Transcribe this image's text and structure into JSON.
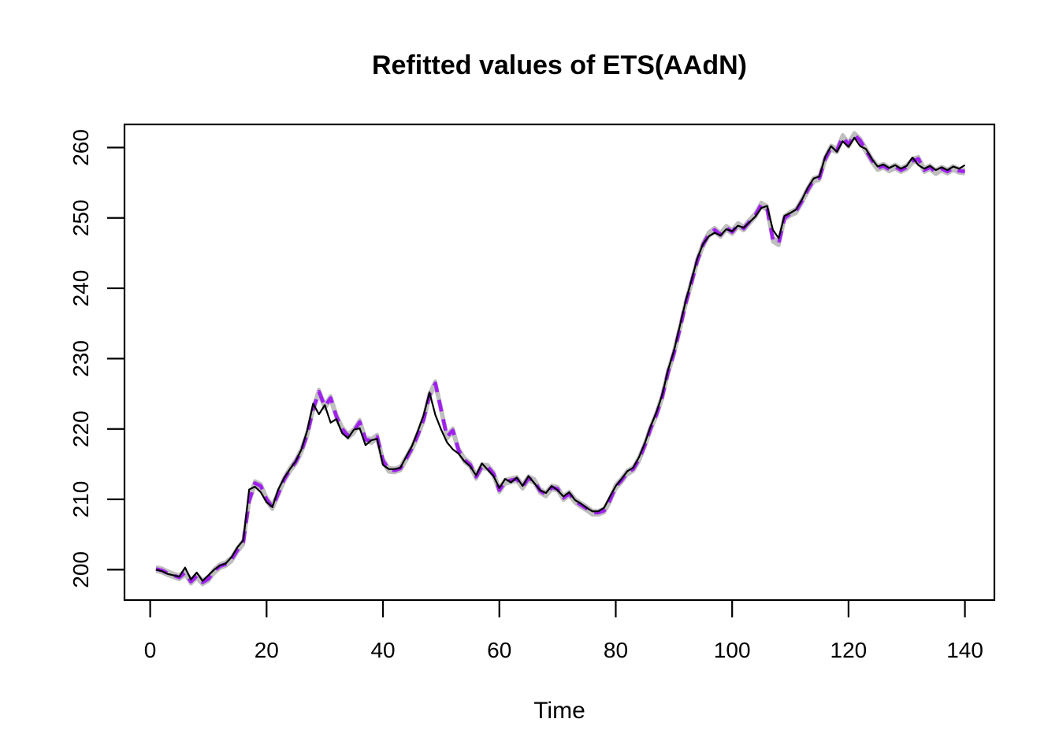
{
  "chart_data": {
    "type": "line",
    "title": "Refitted values of ETS(AAdN)",
    "xlabel": "Time",
    "ylabel": "",
    "x_ticks": [
      0,
      20,
      40,
      60,
      80,
      100,
      120,
      140
    ],
    "y_ticks": [
      200,
      210,
      220,
      230,
      240,
      250,
      260
    ],
    "xlim": [
      -4.6,
      145.6
    ],
    "ylim": [
      195.6,
      264.5
    ],
    "x_start": 1,
    "grid": false,
    "legend_position": "none",
    "colors": {
      "actuals": "#000000",
      "refitted": "#A020F0",
      "refit_band": "#BEBEBE",
      "background": "#FFFFFF",
      "axis": "#000000"
    },
    "series": [
      {
        "name": "refit-band",
        "role": "band of refitted model paths",
        "color": "#BEBEBE",
        "style": "solid",
        "width": 4.6,
        "follows": "refitted",
        "offsets": [
          -0.3,
          0,
          0.3
        ]
      },
      {
        "name": "refitted",
        "role": "refitted values (median path)",
        "color": "#A020F0",
        "style": "dashed",
        "width": 4.6,
        "values": [
          200.1,
          199.9,
          199.5,
          199.2,
          198.9,
          199.6,
          198.3,
          199.1,
          198.2,
          198.7,
          199.8,
          200.5,
          200.8,
          201.5,
          202.8,
          203.9,
          209.8,
          212.3,
          211.9,
          210.0,
          208.9,
          210.8,
          212.8,
          214.2,
          215.3,
          216.9,
          219.3,
          222.8,
          225.3,
          223.2,
          224.4,
          221.8,
          220.0,
          219.0,
          219.7,
          221.0,
          218.5,
          218.3,
          218.9,
          215.5,
          214.2,
          214.1,
          214.4,
          215.8,
          217.3,
          219.2,
          221.4,
          224.8,
          226.5,
          222.7,
          218.9,
          219.8,
          217.0,
          215.6,
          214.9,
          213.2,
          214.7,
          214.6,
          213.6,
          211.3,
          212.5,
          212.7,
          212.9,
          211.8,
          213.0,
          212.6,
          211.2,
          210.7,
          211.7,
          211.5,
          210.2,
          210.8,
          209.8,
          209.2,
          208.7,
          208.1,
          208.1,
          208.4,
          209.9,
          211.8,
          212.7,
          213.8,
          214.3,
          215.7,
          217.7,
          220.1,
          222.1,
          224.6,
          228.1,
          230.8,
          234.2,
          237.8,
          240.8,
          243.9,
          246.2,
          247.7,
          248.3,
          247.6,
          248.6,
          248.0,
          249.0,
          248.5,
          249.5,
          250.4,
          251.9,
          251.4,
          246.9,
          246.4,
          250.0,
          250.6,
          251.0,
          252.4,
          254.0,
          255.4,
          255.7,
          258.4,
          260.0,
          259.6,
          261.5,
          260.4,
          261.8,
          261.0,
          259.6,
          258.2,
          257.1,
          257.4,
          256.9,
          257.3,
          256.8,
          257.2,
          258.1,
          258.4,
          256.8,
          257.2,
          256.5,
          257.0,
          256.6,
          257.1,
          256.7,
          256.6
        ]
      },
      {
        "name": "actuals",
        "role": "observed series",
        "color": "#000000",
        "style": "solid",
        "width": 2.2,
        "values": [
          200.0,
          199.8,
          199.4,
          199.2,
          199.0,
          200.3,
          198.6,
          199.6,
          198.4,
          199.2,
          200.0,
          200.6,
          200.9,
          201.8,
          203.2,
          204.2,
          211.4,
          211.8,
          211.0,
          209.6,
          208.9,
          211.4,
          213.0,
          214.3,
          215.4,
          217.1,
          219.8,
          223.6,
          222.1,
          223.4,
          220.9,
          221.4,
          219.4,
          218.7,
          219.9,
          220.1,
          217.7,
          218.4,
          218.6,
          214.9,
          214.3,
          214.3,
          214.5,
          216.1,
          217.6,
          219.7,
          222.0,
          225.2,
          222.0,
          219.9,
          218.1,
          217.1,
          216.5,
          215.4,
          214.7,
          213.4,
          215.1,
          214.2,
          213.3,
          211.6,
          212.9,
          212.4,
          213.1,
          211.9,
          213.3,
          212.3,
          211.3,
          210.9,
          211.9,
          211.3,
          210.4,
          211.0,
          209.9,
          209.4,
          208.8,
          208.3,
          208.3,
          208.8,
          210.4,
          211.9,
          212.9,
          214.0,
          214.5,
          216.0,
          218.0,
          220.4,
          222.4,
          224.9,
          228.4,
          231.1,
          234.6,
          238.1,
          241.1,
          244.2,
          246.3,
          247.4,
          247.9,
          247.5,
          248.4,
          248.1,
          248.9,
          248.6,
          249.4,
          250.2,
          251.4,
          251.7,
          248.3,
          247.1,
          250.3,
          250.7,
          251.2,
          252.6,
          254.3,
          255.6,
          255.9,
          258.7,
          260.2,
          259.4,
          260.9,
          260.1,
          261.4,
          260.2,
          259.8,
          258.4,
          257.3,
          257.6,
          257.1,
          257.5,
          257.0,
          257.4,
          258.6,
          257.5,
          257.0,
          257.4,
          256.8,
          257.2,
          256.8,
          257.3,
          257.0,
          257.5
        ]
      }
    ]
  }
}
